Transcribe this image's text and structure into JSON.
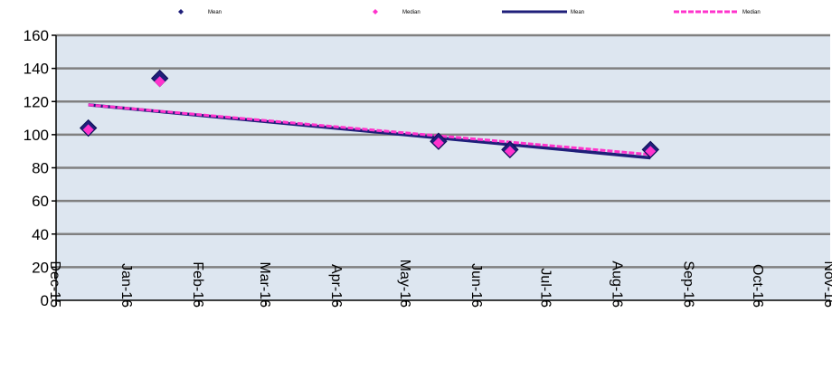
{
  "chart_data": {
    "type": "scatter",
    "title": "",
    "xlabel": "",
    "ylabel": "",
    "ylim": [
      0,
      160
    ],
    "yticks": [
      0,
      20,
      40,
      60,
      80,
      100,
      120,
      140,
      160
    ],
    "xlim": [
      "2015-12-01",
      "2016-11-01"
    ],
    "xtick_labels": [
      "Dec-15",
      "Jan-16",
      "Feb-16",
      "Mar-16",
      "Apr-16",
      "May-16",
      "Jun-16",
      "Jul-16",
      "Aug-16",
      "Sep-16",
      "Oct-16",
      "Nov-16"
    ],
    "grid": true,
    "legend_position": "top",
    "series": [
      {
        "name": "Mean",
        "kind": "markers",
        "marker": "diamond",
        "color": "#1f1f7a",
        "points": [
          {
            "x": "2015-12-15",
            "y": 104
          },
          {
            "x": "2016-01-15",
            "y": 134
          },
          {
            "x": "2016-05-15",
            "y": 96
          },
          {
            "x": "2016-06-15",
            "y": 91
          },
          {
            "x": "2016-08-15",
            "y": 91
          }
        ]
      },
      {
        "name": "Median",
        "kind": "markers",
        "marker": "diamond",
        "color": "#ff33cc",
        "points": [
          {
            "x": "2015-12-15",
            "y": 103
          },
          {
            "x": "2016-01-15",
            "y": 132
          },
          {
            "x": "2016-05-15",
            "y": 95
          },
          {
            "x": "2016-06-15",
            "y": 90
          },
          {
            "x": "2016-08-15",
            "y": 90
          }
        ]
      },
      {
        "name": "Mean",
        "kind": "trendline",
        "color": "#1f1f7a",
        "points": [
          {
            "x": "2015-12-15",
            "y": 118
          },
          {
            "x": "2016-08-15",
            "y": 86
          }
        ]
      },
      {
        "name": "Median",
        "kind": "trendline",
        "color": "#ff33cc",
        "points": [
          {
            "x": "2015-12-15",
            "y": 118
          },
          {
            "x": "2016-08-15",
            "y": 88
          }
        ]
      }
    ],
    "colors": {
      "plot_background": "#dde6f0",
      "grid": "#808080",
      "axis": "#000000"
    }
  }
}
